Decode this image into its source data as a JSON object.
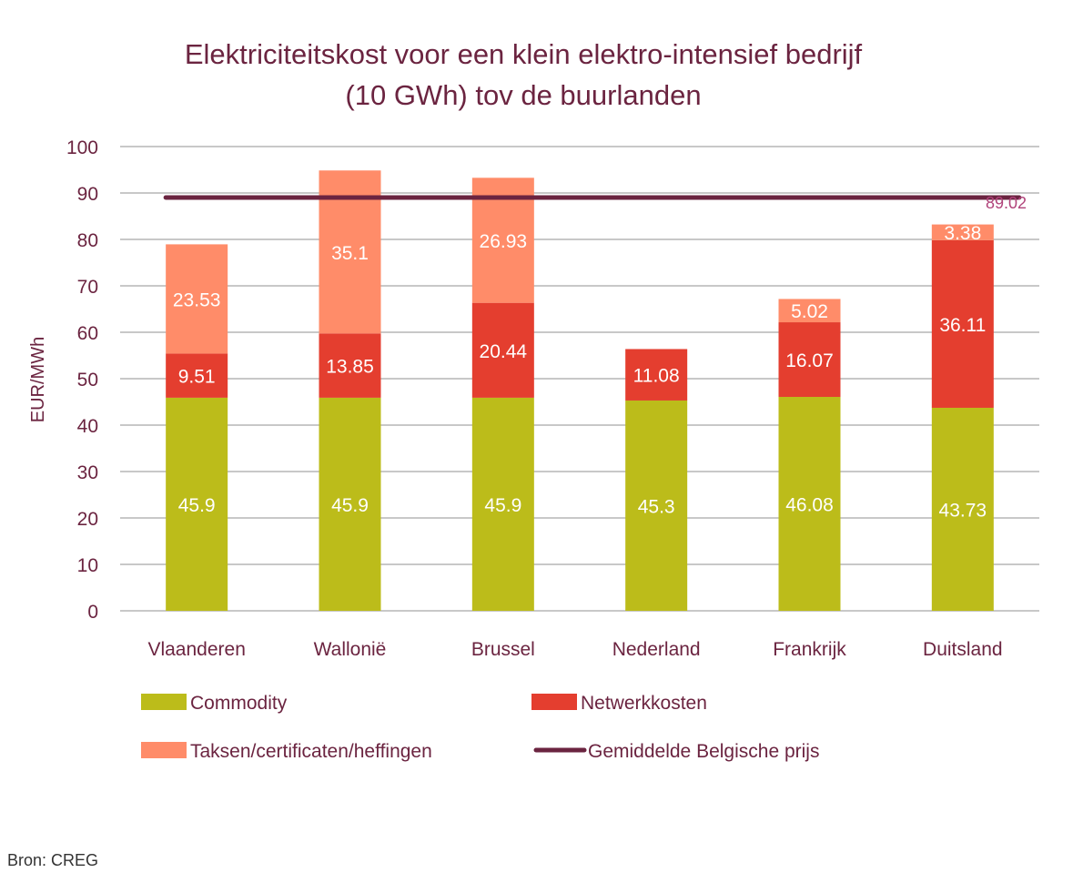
{
  "chart_data": {
    "type": "bar",
    "stacked": true,
    "title": [
      "Elektriciteitskost voor een klein elektro-intensief bedrijf",
      "(10 GWh) tov de buurlanden"
    ],
    "xlabel": "",
    "ylabel": "EUR/MWh",
    "ylim": [
      0,
      100
    ],
    "yticks": [
      "0",
      "10",
      "20",
      "30",
      "40",
      "50",
      "60",
      "70",
      "80",
      "90",
      "100"
    ],
    "grid": true,
    "categories": [
      "Vlaanderen",
      "Wallonië",
      "Brussel",
      "Nederland",
      "Frankrijk",
      "Duitsland"
    ],
    "series": [
      {
        "name": "Commodity",
        "color": "#bcbc1a",
        "values": [
          45.9,
          45.9,
          45.9,
          45.3,
          46.08,
          43.73
        ],
        "labels": [
          "45.9",
          "45.9",
          "45.9",
          "45.3",
          "46.08",
          "43.73"
        ]
      },
      {
        "name": "Netwerkkosten",
        "color": "#e43e2f",
        "values": [
          9.51,
          13.85,
          20.44,
          11.08,
          16.07,
          36.11
        ],
        "labels": [
          "9.51",
          "13.85",
          "20.44",
          "11.08",
          "16.07",
          "36.11"
        ]
      },
      {
        "name": "Taksen/certificaten/heffingen",
        "color": "#ff8c69",
        "values": [
          23.53,
          35.1,
          26.93,
          0,
          5.02,
          3.38
        ],
        "labels": [
          "23.53",
          "35.1",
          "26.93",
          "",
          "5.02",
          "3.38"
        ]
      }
    ],
    "reference_line": {
      "name": "Gemiddelde Belgische prijs",
      "value": 89.02,
      "label": "89.02",
      "color": "#6b2440"
    },
    "legend": {
      "placement": "bottom",
      "items": [
        {
          "label": "Commodity",
          "kind": "box",
          "color": "#bcbc1a"
        },
        {
          "label": "Netwerkkosten",
          "kind": "box",
          "color": "#e43e2f"
        },
        {
          "label": "Taksen/certificaten/heffingen",
          "kind": "box",
          "color": "#ff8c69"
        },
        {
          "label": "Gemiddelde Belgische prijs",
          "kind": "line",
          "color": "#6b2440"
        }
      ]
    }
  },
  "footer": {
    "source": "Bron: CREG"
  }
}
